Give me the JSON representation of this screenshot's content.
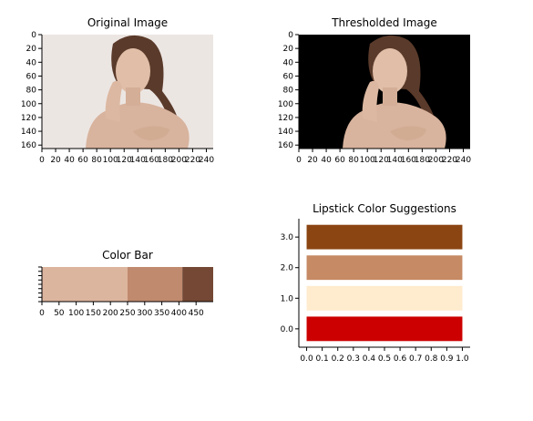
{
  "chart_data": [
    {
      "type": "image",
      "title": "Original Image",
      "image_content": "portrait of a woman",
      "xticks": [
        "0",
        "20",
        "40",
        "60",
        "80",
        "100",
        "120",
        "140",
        "160",
        "180",
        "200",
        "220",
        "240"
      ],
      "yticks": [
        "0",
        "20",
        "40",
        "60",
        "80",
        "100",
        "120",
        "140",
        "160"
      ],
      "xlim": [
        0,
        250
      ],
      "ylim": [
        165,
        0
      ],
      "colors": {
        "background": "#ece6e3",
        "skin": "#d9b7a1",
        "hair": "#5a3a2a"
      }
    },
    {
      "type": "image",
      "title": "Thresholded Image",
      "image_content": "thresholded portrait",
      "xticks": [
        "0",
        "20",
        "40",
        "60",
        "80",
        "100",
        "120",
        "140",
        "160",
        "180",
        "200",
        "220",
        "240"
      ],
      "yticks": [
        "0",
        "20",
        "40",
        "60",
        "80",
        "100",
        "120",
        "140",
        "160"
      ],
      "xlim": [
        0,
        250
      ],
      "ylim": [
        165,
        0
      ],
      "colors": {
        "background": "#000000",
        "skin": "#d9b7a1",
        "hair": "#5a3a2a"
      }
    },
    {
      "type": "bar",
      "title": "Color Bar",
      "xticks": [
        "0",
        "50",
        "100",
        "150",
        "200",
        "250",
        "300",
        "350",
        "400",
        "450"
      ],
      "xlim": [
        0,
        500
      ],
      "segments": [
        {
          "start": 0,
          "end": 250,
          "color": "#dcb59e"
        },
        {
          "start": 250,
          "end": 410,
          "color": "#c08a6e"
        },
        {
          "start": 410,
          "end": 500,
          "color": "#744835"
        }
      ]
    },
    {
      "type": "bar",
      "title": "Lipstick Color Suggestions",
      "orientation": "horizontal",
      "categories": [
        "0.0",
        "1.0",
        "2.0",
        "3.0"
      ],
      "values": [
        1.0,
        1.0,
        1.0,
        1.0
      ],
      "colors": [
        "#cc0000",
        "#ffebcd",
        "#c68a64",
        "#8b4513"
      ],
      "xticks": [
        "0.0",
        "0.1",
        "0.2",
        "0.3",
        "0.4",
        "0.5",
        "0.6",
        "0.7",
        "0.8",
        "0.9",
        "1.0"
      ],
      "xlim": [
        -0.05,
        1.05
      ],
      "ylim": [
        -0.6,
        3.6
      ]
    }
  ]
}
